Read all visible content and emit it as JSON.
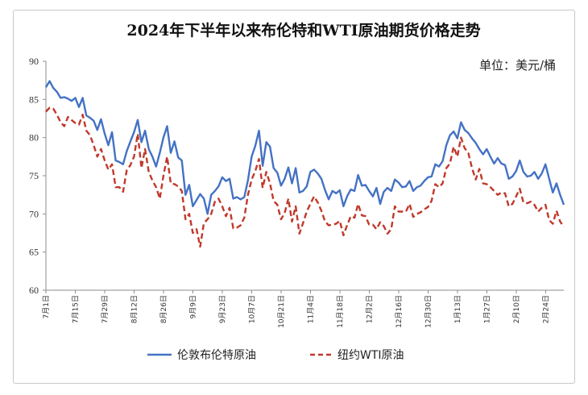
{
  "chart_data": {
    "type": "line",
    "title": "2024年下半年以来布伦特和WTI原油期货价格走势",
    "unit_label": "单位：美元/桶",
    "ylim": [
      60,
      90
    ],
    "yticks": [
      60,
      65,
      70,
      75,
      80,
      85,
      90
    ],
    "x_tick_labels": [
      "7月1日",
      "7月15日",
      "7月29日",
      "8月12日",
      "8月26日",
      "9月9日",
      "9月23日",
      "10月7日",
      "10月21日",
      "11月4日",
      "11月18日",
      "12月2日",
      "12月16日",
      "12月30日",
      "1月13日",
      "1月27日",
      "2月10日",
      "2月24日"
    ],
    "legend_position": "bottom",
    "grid": false,
    "series": [
      {
        "name": "伦敦布伦特原油",
        "color": "#4472c4",
        "dash": false,
        "values": [
          86.6,
          87.4,
          86.5,
          86.0,
          85.2,
          85.3,
          85.1,
          84.8,
          85.2,
          84.0,
          85.2,
          82.9,
          82.6,
          82.2,
          81.0,
          82.4,
          80.5,
          79.0,
          80.7,
          77.0,
          76.8,
          76.5,
          78.2,
          79.5,
          80.7,
          82.3,
          79.4,
          80.9,
          78.5,
          77.5,
          76.2,
          78.0,
          80.0,
          81.5,
          78.0,
          79.5,
          77.4,
          77.0,
          72.5,
          73.8,
          71.0,
          71.8,
          72.6,
          72.0,
          70.0,
          72.5,
          73.0,
          73.6,
          74.8,
          74.3,
          74.6,
          72.0,
          72.2,
          71.9,
          72.2,
          74.4,
          77.5,
          78.9,
          80.9,
          76.3,
          79.4,
          78.8,
          76.0,
          75.4,
          73.7,
          74.6,
          76.1,
          74.0,
          76.0,
          72.8,
          73.0,
          73.6,
          75.5,
          75.8,
          75.3,
          74.6,
          73.1,
          71.9,
          73.0,
          72.7,
          73.1,
          71.0,
          72.3,
          73.2,
          73.0,
          75.1,
          73.7,
          73.8,
          73.0,
          72.3,
          73.4,
          71.3,
          72.9,
          73.4,
          73.0,
          74.5,
          74.1,
          73.5,
          73.6,
          74.3,
          73.0,
          73.5,
          73.7,
          74.3,
          74.8,
          74.9,
          76.5,
          76.2,
          76.9,
          79.0,
          80.3,
          80.8,
          79.9,
          82.0,
          81.0,
          80.6,
          79.9,
          79.3,
          78.5,
          77.8,
          78.5,
          77.5,
          76.6,
          77.3,
          76.6,
          76.4,
          74.6,
          74.9,
          75.6,
          77.0,
          75.5,
          74.9,
          75.0,
          75.5,
          74.6,
          75.3,
          76.5,
          74.6,
          72.8,
          74.0,
          72.5,
          71.2
        ]
      },
      {
        "name": "纽约WTI原油",
        "color": "#c0392b",
        "dash": true,
        "values": [
          83.4,
          83.9,
          83.8,
          83.0,
          82.0,
          81.5,
          82.7,
          82.3,
          81.9,
          81.7,
          83.0,
          80.9,
          80.3,
          79.0,
          77.5,
          78.5,
          77.0,
          75.8,
          76.5,
          73.5,
          73.5,
          72.9,
          75.7,
          76.4,
          77.5,
          80.5,
          76.0,
          78.5,
          75.5,
          74.4,
          73.5,
          72.0,
          75.0,
          77.5,
          74.0,
          73.9,
          73.6,
          73.0,
          69.3,
          70.0,
          67.5,
          68.0,
          65.7,
          68.8,
          69.3,
          70.0,
          71.6,
          72.0,
          71.0,
          69.7,
          70.8,
          68.1,
          68.2,
          68.5,
          69.5,
          72.5,
          74.5,
          75.6,
          77.2,
          73.4,
          75.5,
          74.0,
          71.7,
          71.2,
          69.3,
          70.1,
          72.0,
          69.0,
          71.0,
          67.4,
          68.8,
          70.3,
          71.3,
          72.3,
          71.5,
          70.4,
          69.0,
          68.5,
          68.6,
          68.7,
          69.1,
          67.2,
          68.5,
          69.7,
          69.5,
          71.3,
          69.8,
          69.7,
          68.6,
          68.6,
          68.0,
          68.9,
          68.4,
          67.4,
          68.0,
          71.0,
          70.3,
          70.3,
          70.3,
          71.3,
          69.6,
          70.0,
          70.2,
          70.6,
          70.9,
          71.7,
          73.9,
          73.5,
          74.0,
          76.0,
          76.6,
          78.8,
          77.5,
          80.0,
          78.6,
          78.0,
          76.0,
          74.5,
          75.9,
          74.0,
          73.9,
          73.5,
          73.0,
          72.5,
          72.8,
          72.7,
          71.0,
          71.3,
          72.3,
          73.3,
          71.5,
          71.4,
          71.6,
          71.2,
          70.3,
          70.8,
          71.2,
          69.2,
          68.7,
          70.4,
          69.0,
          68.3
        ]
      }
    ]
  }
}
